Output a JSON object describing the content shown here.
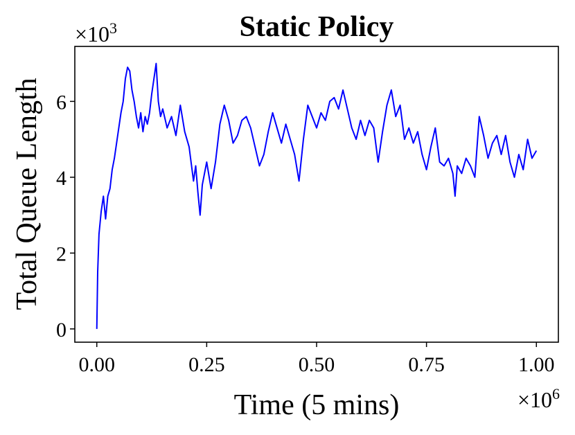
{
  "chart_data": {
    "type": "line",
    "title": "Static Policy",
    "x_label": "Time (5 mins)",
    "y_label": "Total Queue Length",
    "x_multiplier": "×10^6",
    "y_multiplier": "×10^3",
    "xlim": [
      -0.05,
      1.05
    ],
    "ylim": [
      -0.35,
      7.45
    ],
    "xticks": [
      {
        "value": 0,
        "label": "0.00"
      },
      {
        "value": 0.25,
        "label": "0.25"
      },
      {
        "value": 0.5,
        "label": "0.50"
      },
      {
        "value": 0.75,
        "label": "0.75"
      },
      {
        "value": 1,
        "label": "1.00"
      }
    ],
    "yticks": [
      0,
      2,
      4,
      6
    ],
    "grid": false,
    "series": [
      {
        "name": "Total Queue Length",
        "color": "#0000ff",
        "x": [
          0,
          0.002,
          0.005,
          0.01,
          0.015,
          0.02,
          0.025,
          0.03,
          0.035,
          0.04,
          0.045,
          0.05,
          0.055,
          0.06,
          0.065,
          0.07,
          0.075,
          0.08,
          0.085,
          0.09,
          0.095,
          0.1,
          0.105,
          0.11,
          0.115,
          0.12,
          0.125,
          0.13,
          0.135,
          0.14,
          0.145,
          0.15,
          0.16,
          0.17,
          0.18,
          0.19,
          0.2,
          0.21,
          0.22,
          0.225,
          0.23,
          0.235,
          0.24,
          0.25,
          0.26,
          0.27,
          0.28,
          0.29,
          0.3,
          0.31,
          0.32,
          0.33,
          0.34,
          0.35,
          0.36,
          0.37,
          0.38,
          0.39,
          0.4,
          0.41,
          0.42,
          0.43,
          0.44,
          0.45,
          0.46,
          0.47,
          0.48,
          0.49,
          0.5,
          0.51,
          0.52,
          0.53,
          0.54,
          0.55,
          0.56,
          0.57,
          0.58,
          0.59,
          0.6,
          0.61,
          0.62,
          0.63,
          0.64,
          0.65,
          0.66,
          0.67,
          0.68,
          0.69,
          0.7,
          0.71,
          0.72,
          0.73,
          0.74,
          0.75,
          0.76,
          0.77,
          0.78,
          0.79,
          0.8,
          0.81,
          0.815,
          0.82,
          0.83,
          0.84,
          0.85,
          0.86,
          0.87,
          0.88,
          0.89,
          0.9,
          0.91,
          0.92,
          0.93,
          0.94,
          0.95,
          0.96,
          0.97,
          0.98,
          0.99,
          1.0
        ],
        "values": [
          0,
          1.5,
          2.5,
          3.1,
          3.5,
          2.9,
          3.5,
          3.7,
          4.2,
          4.5,
          4.9,
          5.3,
          5.7,
          6.0,
          6.6,
          6.9,
          6.8,
          6.3,
          6.0,
          5.6,
          5.3,
          5.7,
          5.2,
          5.6,
          5.4,
          5.7,
          6.2,
          6.6,
          7.0,
          6.0,
          5.6,
          5.8,
          5.3,
          5.6,
          5.1,
          5.9,
          5.2,
          4.8,
          3.9,
          4.3,
          3.6,
          3.0,
          3.8,
          4.4,
          3.7,
          4.4,
          5.4,
          5.9,
          5.5,
          4.9,
          5.1,
          5.5,
          5.6,
          5.3,
          4.8,
          4.3,
          4.6,
          5.2,
          5.7,
          5.3,
          4.9,
          5.4,
          5.0,
          4.6,
          3.9,
          5.0,
          5.9,
          5.6,
          5.3,
          5.7,
          5.5,
          6.0,
          6.1,
          5.8,
          6.3,
          5.8,
          5.3,
          5.0,
          5.5,
          5.1,
          5.5,
          5.3,
          4.4,
          5.2,
          5.9,
          6.3,
          5.6,
          5.9,
          5.0,
          5.3,
          4.9,
          5.2,
          4.6,
          4.2,
          4.8,
          5.3,
          4.4,
          4.3,
          4.5,
          4.1,
          3.5,
          4.3,
          4.1,
          4.5,
          4.3,
          4.0,
          5.6,
          5.1,
          4.5,
          4.9,
          5.1,
          4.6,
          5.1,
          4.4,
          4.0,
          4.6,
          4.2,
          5.0,
          4.5,
          4.7
        ]
      }
    ]
  }
}
